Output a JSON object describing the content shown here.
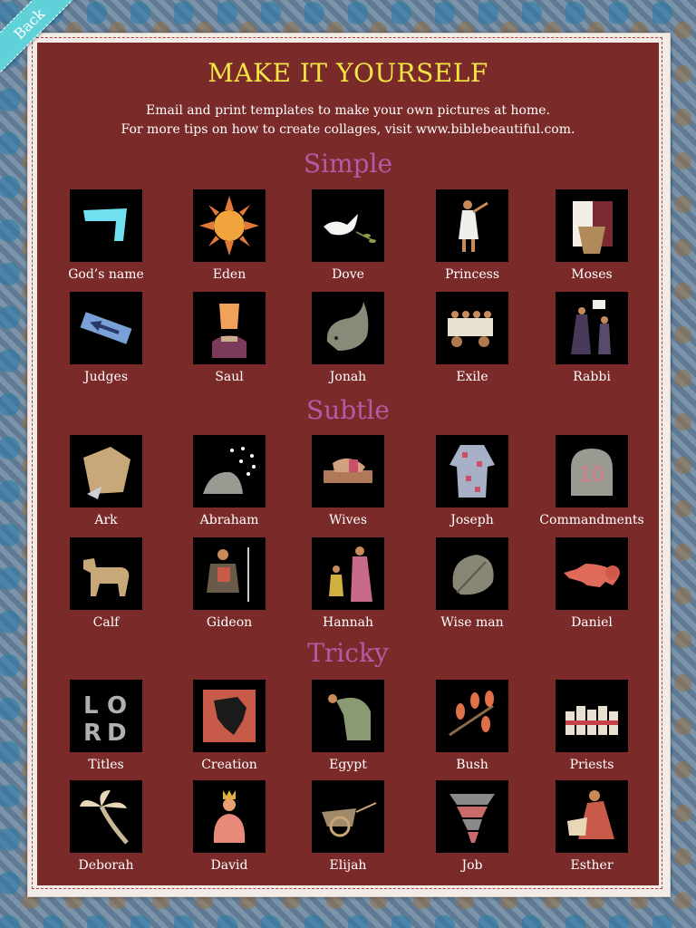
{
  "back_label": "Back",
  "title": "MAKE IT YOURSELF",
  "description": {
    "line1": "Email and print templates to make your own pictures at home.",
    "line2": "For more tips on how to create collages, visit www.biblebeautiful.com."
  },
  "sections": {
    "simple": {
      "heading": "Simple",
      "row1": [
        "God’s name",
        "Eden",
        "Dove",
        "Princess",
        "Moses"
      ],
      "row2": [
        "Judges",
        "Saul",
        "Jonah",
        "Exile",
        "Rabbi"
      ]
    },
    "subtle": {
      "heading": "Subtle",
      "row1": [
        "Ark",
        "Abraham",
        "Wives",
        "Joseph",
        "Commandments"
      ],
      "row2": [
        "Calf",
        "Gideon",
        "Hannah",
        "Wise man",
        "Daniel"
      ]
    },
    "tricky": {
      "heading": "Tricky",
      "row1": [
        "Titles",
        "Creation",
        "Egypt",
        "Bush",
        "Priests"
      ],
      "row2": [
        "Deborah",
        "David",
        "Elijah",
        "Job",
        "Esther"
      ]
    }
  },
  "tile_text": {
    "commandments_number": "10",
    "titles_letters": [
      "L",
      "O",
      "R",
      "D"
    ]
  },
  "colors": {
    "panel": "#7a2a28",
    "title": "#f2e544",
    "section_heading": "#b65aa7",
    "back_ribbon": "#5fd1d8"
  }
}
